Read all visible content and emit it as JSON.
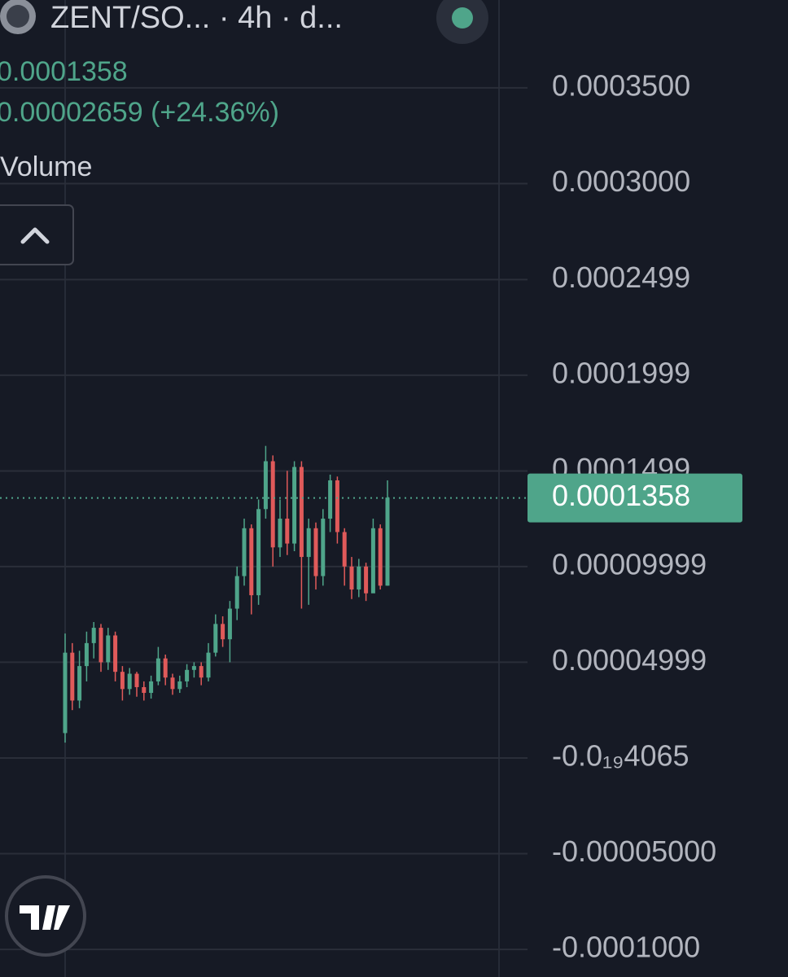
{
  "chart_data": {
    "type": "candlestick",
    "title": "ZENT/SO... · 4h · d...",
    "last_price": 0.0001358,
    "change_label": "0.00002659 (+24.36%)",
    "volume_label": "Volume",
    "up_color": "#4fa58a",
    "down_color": "#e05a5a",
    "grid": true,
    "ylim": [
      -0.0001144,
      0.0003959
    ],
    "yticks": [
      {
        "value": 0.00035,
        "label": "0.0003500"
      },
      {
        "value": 0.0003,
        "label": "0.0003000"
      },
      0.0002499,
      0.0001999,
      0.0001499,
      9.999e-05,
      4.999e-05,
      {
        "value": -4.065e-20,
        "label": "-0.0₁₉4065"
      },
      {
        "value": -5e-05,
        "label": "-0.00005000"
      },
      {
        "value": -0.0001,
        "label": "-0.0001000"
      }
    ],
    "open": [
      1.3e-05,
      5.5e-05,
      3e-05,
      4.8e-05,
      6e-05,
      6.8e-05,
      5e-05,
      6.4e-05,
      4.5e-05,
      3.6e-05,
      4.4e-05,
      3.7e-05,
      3.4e-05,
      4e-05,
      5.2e-05,
      4.2e-05,
      3.6e-05,
      4e-05,
      4.6e-05,
      4.8e-05,
      4.2e-05,
      5.5e-05,
      7e-05,
      6.2e-05,
      7.8e-05,
      9.5e-05,
      0.00012,
      8.5e-05,
      0.00013,
      0.000155,
      0.00011,
      0.000125,
      0.000112,
      0.000152,
      0.000105,
      0.00012,
      9.5e-05,
      0.000125,
      0.000145,
      0.000118,
      0.0001,
      8.8e-05,
      0.0001,
      8.6e-05,
      0.00012,
      9e-05
    ],
    "high": [
      6.5e-05,
      6e-05,
      5.6e-05,
      6.6e-05,
      7.1e-05,
      7e-05,
      6.8e-05,
      6.6e-05,
      4.8e-05,
      4.7e-05,
      4.5e-05,
      4e-05,
      4.3e-05,
      5.8e-05,
      5.4e-05,
      4.4e-05,
      4.3e-05,
      4.9e-05,
      5e-05,
      5e-05,
      6e-05,
      7.5e-05,
      7.4e-05,
      8.2e-05,
      0.0001,
      0.000125,
      0.000122,
      0.000135,
      0.000163,
      0.000158,
      0.000135,
      0.00015,
      0.000155,
      0.000155,
      0.000125,
      0.000123,
      0.00013,
      0.000148,
      0.000147,
      0.00012,
      0.000105,
      0.000104,
      0.000102,
      0.000125,
      0.000122,
      0.000145
    ],
    "low": [
      8e-06,
      2.5e-05,
      2.6e-05,
      4e-05,
      5.2e-05,
      4.5e-05,
      4.6e-05,
      4e-05,
      3e-05,
      3.3e-05,
      3.2e-05,
      3e-05,
      3.1e-05,
      3.8e-05,
      3.8e-05,
      3.3e-05,
      3.4e-05,
      3.7e-05,
      4.2e-05,
      3.8e-05,
      4e-05,
      5.3e-05,
      5.8e-05,
      5e-05,
      7.2e-05,
      9e-05,
      7.5e-05,
      8e-05,
      0.000125,
      0.0001,
      0.000105,
      0.000106,
      0.000108,
      7.8e-05,
      8e-05,
      8.8e-05,
      9e-05,
      0.000118,
      0.000112,
      9e-05,
      8.3e-05,
      8.4e-05,
      8.2e-05,
      8.8e-05,
      8.8e-05,
      9e-05
    ],
    "close": [
      5.5e-05,
      3e-05,
      4.8e-05,
      6e-05,
      6.8e-05,
      5e-05,
      6.4e-05,
      4.5e-05,
      3.6e-05,
      4.4e-05,
      3.7e-05,
      3.4e-05,
      4e-05,
      5.2e-05,
      4.2e-05,
      3.6e-05,
      4e-05,
      4.6e-05,
      4.8e-05,
      4.2e-05,
      5.5e-05,
      7e-05,
      6.2e-05,
      7.8e-05,
      9.5e-05,
      0.00012,
      8.5e-05,
      0.00013,
      0.000155,
      0.00011,
      0.000125,
      0.000112,
      0.000152,
      0.000105,
      0.00012,
      9.5e-05,
      0.000125,
      0.000145,
      0.000118,
      0.0001,
      8.8e-05,
      0.0001,
      8.6e-05,
      0.00012,
      9e-05,
      0.000136
    ]
  }
}
